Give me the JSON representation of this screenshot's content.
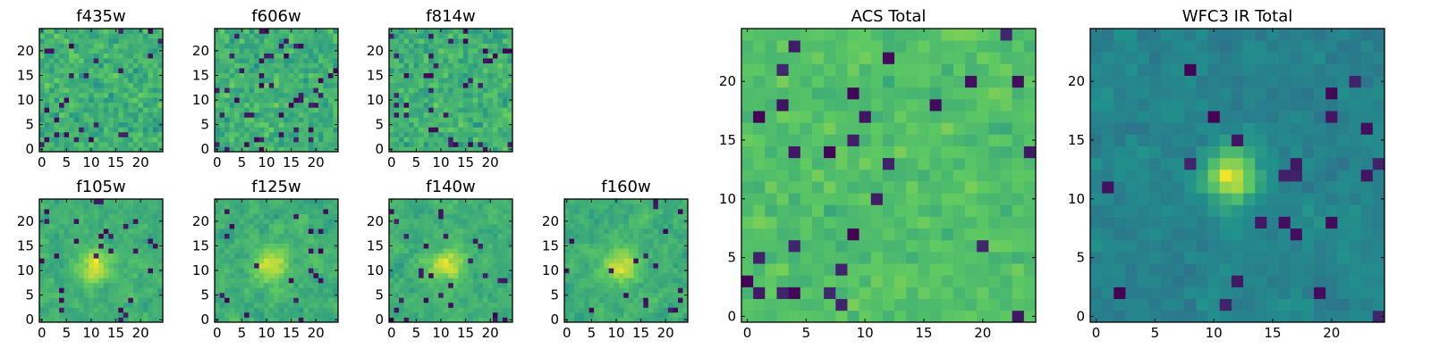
{
  "figure": {
    "colormap": [
      "#440154",
      "#3b528b",
      "#21918c",
      "#5ec962",
      "#fde725"
    ],
    "grid": false,
    "legend": "none",
    "colorbar": "none"
  },
  "chart_data": [
    {
      "type": "heatmap",
      "title": "f435w",
      "rows": 25,
      "cols": 25,
      "xlim": [
        -0.5,
        24.5
      ],
      "ylim": [
        -0.5,
        24.5
      ],
      "xticks": [
        "0",
        "5",
        "10",
        "15",
        "20"
      ],
      "yticks": [
        "0",
        "5",
        "10",
        "15",
        "20"
      ],
      "origin": "lower",
      "value_range": [
        0,
        1
      ],
      "seed": 11,
      "smooth": 0.0,
      "dip_fraction": 0.06,
      "base_level": 0.64,
      "noise_level": 0.18,
      "peak": null
    },
    {
      "type": "heatmap",
      "title": "f606w",
      "rows": 25,
      "cols": 25,
      "xlim": [
        -0.5,
        24.5
      ],
      "ylim": [
        -0.5,
        24.5
      ],
      "xticks": [
        "0",
        "5",
        "10",
        "15",
        "20"
      ],
      "yticks": [
        "0",
        "5",
        "10",
        "15",
        "20"
      ],
      "origin": "lower",
      "value_range": [
        0,
        1
      ],
      "seed": 23,
      "smooth": 0.0,
      "dip_fraction": 0.06,
      "base_level": 0.64,
      "noise_level": 0.18,
      "peak": null
    },
    {
      "type": "heatmap",
      "title": "f814w",
      "rows": 25,
      "cols": 25,
      "xlim": [
        -0.5,
        24.5
      ],
      "ylim": [
        -0.5,
        24.5
      ],
      "xticks": [
        "0",
        "5",
        "10",
        "15",
        "20"
      ],
      "yticks": [
        "0",
        "5",
        "10",
        "15",
        "20"
      ],
      "origin": "lower",
      "value_range": [
        0,
        1
      ],
      "seed": 37,
      "smooth": 0.0,
      "dip_fraction": 0.06,
      "base_level": 0.64,
      "noise_level": 0.18,
      "peak": null
    },
    {
      "type": "heatmap",
      "title": "f105w",
      "rows": 25,
      "cols": 25,
      "xlim": [
        -0.5,
        24.5
      ],
      "ylim": [
        -0.5,
        24.5
      ],
      "xticks": [
        "0",
        "5",
        "10",
        "15",
        "20"
      ],
      "yticks": [
        "0",
        "5",
        "10",
        "15",
        "20"
      ],
      "origin": "lower",
      "value_range": [
        0,
        1
      ],
      "seed": 41,
      "smooth": 0.55,
      "dip_fraction": 0.04,
      "base_level": 0.62,
      "noise_level": 0.2,
      "peak": {
        "x": 11,
        "y": 11,
        "sigma": 2.5,
        "amp": 0.3
      }
    },
    {
      "type": "heatmap",
      "title": "f125w",
      "rows": 25,
      "cols": 25,
      "xlim": [
        -0.5,
        24.5
      ],
      "ylim": [
        -0.5,
        24.5
      ],
      "xticks": [
        "0",
        "5",
        "10",
        "15",
        "20"
      ],
      "yticks": [
        "0",
        "5",
        "10",
        "15",
        "20"
      ],
      "origin": "lower",
      "value_range": [
        0,
        1
      ],
      "seed": 53,
      "smooth": 0.55,
      "dip_fraction": 0.04,
      "base_level": 0.62,
      "noise_level": 0.2,
      "peak": {
        "x": 11,
        "y": 11,
        "sigma": 2.5,
        "amp": 0.3
      }
    },
    {
      "type": "heatmap",
      "title": "f140w",
      "rows": 25,
      "cols": 25,
      "xlim": [
        -0.5,
        24.5
      ],
      "ylim": [
        -0.5,
        24.5
      ],
      "xticks": [
        "0",
        "5",
        "10",
        "15",
        "20"
      ],
      "yticks": [
        "0",
        "5",
        "10",
        "15",
        "20"
      ],
      "origin": "lower",
      "value_range": [
        0,
        1
      ],
      "seed": 67,
      "smooth": 0.55,
      "dip_fraction": 0.04,
      "base_level": 0.62,
      "noise_level": 0.2,
      "peak": {
        "x": 11,
        "y": 11,
        "sigma": 2.5,
        "amp": 0.3
      }
    },
    {
      "type": "heatmap",
      "title": "f160w",
      "rows": 25,
      "cols": 25,
      "xlim": [
        -0.5,
        24.5
      ],
      "ylim": [
        -0.5,
        24.5
      ],
      "xticks": [
        "0",
        "5",
        "10",
        "15",
        "20"
      ],
      "yticks": [
        "0",
        "5",
        "10",
        "15",
        "20"
      ],
      "origin": "lower",
      "value_range": [
        0,
        1
      ],
      "seed": 79,
      "smooth": 0.55,
      "dip_fraction": 0.04,
      "base_level": 0.62,
      "noise_level": 0.2,
      "peak": {
        "x": 11,
        "y": 11,
        "sigma": 2.5,
        "amp": 0.3
      }
    },
    {
      "type": "heatmap",
      "title": "ACS Total",
      "rows": 25,
      "cols": 25,
      "xlim": [
        -0.5,
        24.5
      ],
      "ylim": [
        -0.5,
        24.5
      ],
      "xticks": [
        "0",
        "5",
        "10",
        "15",
        "20"
      ],
      "yticks": [
        "0",
        "5",
        "10",
        "15",
        "20"
      ],
      "origin": "lower",
      "value_range": [
        0,
        1
      ],
      "seed": 97,
      "smooth": 0.2,
      "dip_fraction": 0.04,
      "base_level": 0.7,
      "noise_level": 0.14,
      "peak": null
    },
    {
      "type": "heatmap",
      "title": "WFC3 IR Total",
      "rows": 25,
      "cols": 25,
      "xlim": [
        -0.5,
        24.5
      ],
      "ylim": [
        -0.5,
        24.5
      ],
      "xticks": [
        "0",
        "5",
        "10",
        "15",
        "20"
      ],
      "yticks": [
        "0",
        "5",
        "10",
        "15",
        "20"
      ],
      "origin": "lower",
      "value_range": [
        0,
        1
      ],
      "seed": 131,
      "smooth": 0.45,
      "dip_fraction": 0.03,
      "base_level": 0.45,
      "noise_level": 0.13,
      "peak": {
        "x": 11.5,
        "y": 12,
        "sigma": 1.6,
        "amp": 0.5
      }
    }
  ]
}
